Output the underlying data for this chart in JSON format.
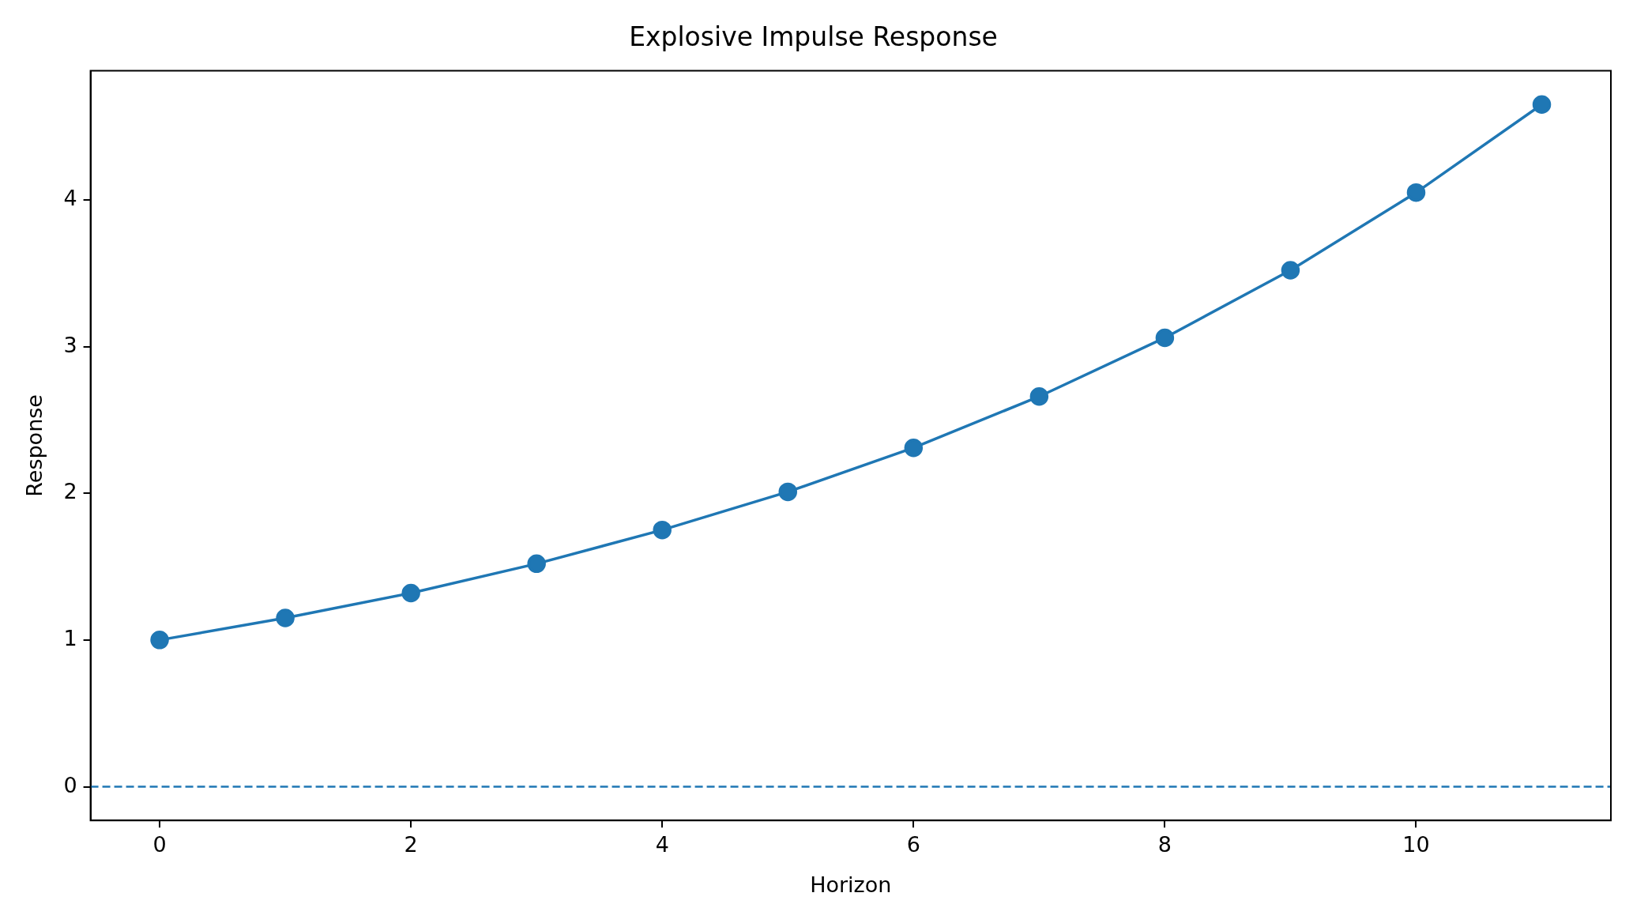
{
  "chart_data": {
    "type": "line",
    "title": "Explosive Impulse Response",
    "xlabel": "Horizon",
    "ylabel": "Response",
    "x": [
      0,
      1,
      2,
      3,
      4,
      5,
      6,
      7,
      8,
      9,
      10,
      11
    ],
    "series": [
      {
        "color": "#1f77b4",
        "values": [
          1.0,
          1.15,
          1.32,
          1.52,
          1.75,
          2.01,
          2.31,
          2.66,
          3.06,
          3.52,
          4.05,
          4.65
        ]
      }
    ],
    "xlim": [
      -0.55,
      11.55
    ],
    "xticks": [
      0,
      2,
      4,
      6,
      8,
      10
    ],
    "ylim": [
      -0.23,
      4.88
    ],
    "yticks": [
      0,
      1,
      2,
      3,
      4
    ],
    "ref_lines": [
      {
        "axis": "y",
        "value": 0,
        "color": "#1f77b4",
        "line_style": "dashed"
      }
    ],
    "grid": false,
    "legend": false,
    "marker": "circle",
    "line_style": "solid"
  }
}
